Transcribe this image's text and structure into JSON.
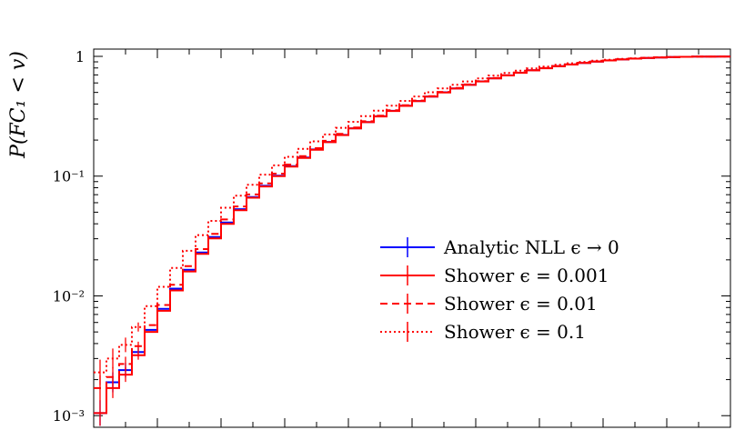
{
  "chart_data": {
    "type": "line",
    "title": "",
    "xlabel": "",
    "ylabel": "P(FC₁ < v)",
    "y_scale": "log",
    "ylim": [
      0.0008,
      1.15
    ],
    "xlim": [
      0,
      100
    ],
    "grid": false,
    "legend_position": "right",
    "yticks": [
      {
        "value": 1,
        "label": "1"
      },
      {
        "value": 0.1,
        "label": "10⁻¹"
      },
      {
        "value": 0.01,
        "label": "10⁻²"
      },
      {
        "value": 0.001,
        "label": "10⁻³"
      }
    ],
    "x": [
      0,
      2,
      4,
      6,
      8,
      10,
      12,
      14,
      16,
      18,
      20,
      22,
      24,
      26,
      28,
      30,
      32,
      34,
      36,
      38,
      40,
      42,
      44,
      46,
      48,
      50,
      52,
      54,
      56,
      58,
      60,
      62,
      64,
      66,
      68,
      70,
      72,
      74,
      76,
      78,
      80,
      82,
      84,
      86,
      88,
      90,
      92,
      94,
      96,
      98,
      100
    ],
    "series": [
      {
        "name": "Analytic NLL ϵ → 0",
        "color": "#0000ff",
        "style": "solid",
        "values": [
          0.00105,
          0.0019,
          0.0024,
          0.0034,
          0.0052,
          0.0078,
          0.0115,
          0.0165,
          0.023,
          0.031,
          0.041,
          0.053,
          0.067,
          0.083,
          0.101,
          0.121,
          0.143,
          0.167,
          0.193,
          0.221,
          0.251,
          0.283,
          0.316,
          0.351,
          0.387,
          0.424,
          0.462,
          0.501,
          0.54,
          0.579,
          0.618,
          0.656,
          0.694,
          0.73,
          0.765,
          0.797,
          0.828,
          0.856,
          0.882,
          0.905,
          0.925,
          0.943,
          0.958,
          0.97,
          0.98,
          0.987,
          0.992,
          0.995,
          0.997,
          0.998,
          0.999
        ]
      },
      {
        "name": "Shower ϵ = 0.001",
        "color": "#ff0000",
        "style": "solid",
        "values": [
          0.00105,
          0.0017,
          0.0022,
          0.0032,
          0.005,
          0.0075,
          0.0111,
          0.016,
          0.0224,
          0.0302,
          0.04,
          0.052,
          0.066,
          0.082,
          0.1,
          0.12,
          0.142,
          0.166,
          0.192,
          0.22,
          0.25,
          0.282,
          0.315,
          0.35,
          0.386,
          0.423,
          0.461,
          0.5,
          0.539,
          0.578,
          0.617,
          0.655,
          0.693,
          0.729,
          0.764,
          0.796,
          0.827,
          0.855,
          0.881,
          0.904,
          0.924,
          0.942,
          0.957,
          0.969,
          0.979,
          0.986,
          0.991,
          0.994,
          0.996,
          0.997,
          0.998
        ]
      },
      {
        "name": "Shower ϵ = 0.01",
        "color": "#ff0000",
        "style": "dashed",
        "values": [
          0.0017,
          0.0021,
          0.0027,
          0.0038,
          0.0057,
          0.0084,
          0.0124,
          0.0177,
          0.0246,
          0.033,
          0.0435,
          0.0558,
          0.0703,
          0.087,
          0.105,
          0.125,
          0.147,
          0.171,
          0.197,
          0.225,
          0.255,
          0.287,
          0.32,
          0.355,
          0.391,
          0.428,
          0.466,
          0.505,
          0.544,
          0.583,
          0.622,
          0.66,
          0.697,
          0.733,
          0.767,
          0.799,
          0.83,
          0.858,
          0.884,
          0.906,
          0.926,
          0.944,
          0.959,
          0.971,
          0.981,
          0.988,
          0.992,
          0.995,
          0.997,
          0.998,
          0.999
        ]
      },
      {
        "name": "Shower ϵ = 0.1",
        "color": "#ff0000",
        "style": "dotted",
        "values": [
          0.0023,
          0.003,
          0.0039,
          0.0055,
          0.0082,
          0.0119,
          0.0171,
          0.0238,
          0.0322,
          0.0423,
          0.0545,
          0.0686,
          0.0847,
          0.103,
          0.123,
          0.145,
          0.169,
          0.195,
          0.223,
          0.253,
          0.284,
          0.317,
          0.352,
          0.388,
          0.425,
          0.463,
          0.501,
          0.54,
          0.579,
          0.617,
          0.655,
          0.691,
          0.726,
          0.76,
          0.792,
          0.822,
          0.85,
          0.876,
          0.899,
          0.919,
          0.937,
          0.952,
          0.964,
          0.974,
          0.982,
          0.988,
          0.992,
          0.995,
          0.997,
          0.998,
          0.999
        ]
      }
    ]
  }
}
